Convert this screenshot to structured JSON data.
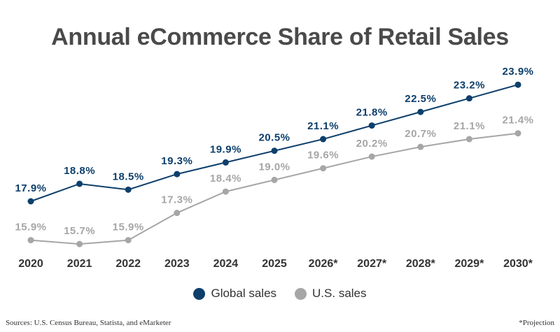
{
  "chart_data": {
    "type": "line",
    "title": "Annual eCommerce Share of Retail Sales",
    "categories": [
      "2020",
      "2021",
      "2022",
      "2023",
      "2024",
      "2025",
      "2026*",
      "2027*",
      "2028*",
      "2029*",
      "2030*"
    ],
    "series": [
      {
        "name": "Global sales",
        "color": "#0d3f6b",
        "values": [
          17.9,
          18.8,
          18.5,
          19.3,
          19.9,
          20.5,
          21.1,
          21.8,
          22.5,
          23.2,
          23.9
        ],
        "labels": [
          "17.9%",
          "18.8%",
          "18.5%",
          "19.3%",
          "19.9%",
          "20.5%",
          "21.1%",
          "21.8%",
          "22.5%",
          "23.2%",
          "23.9%"
        ]
      },
      {
        "name": "U.S. sales",
        "color": "#a6a6a6",
        "values": [
          15.9,
          15.7,
          15.9,
          17.3,
          18.4,
          19.0,
          19.6,
          20.2,
          20.7,
          21.1,
          21.4
        ],
        "labels": [
          "15.9%",
          "15.7%",
          "15.9%",
          "17.3%",
          "18.4%",
          "19.0%",
          "19.6%",
          "20.2%",
          "20.7%",
          "21.1%",
          "21.4%"
        ]
      }
    ],
    "grid": false,
    "legend": "bottom-center"
  },
  "footer": {
    "source": "Sources: U.S. Census Bureau, Statista, and eMarketer",
    "note": "*Projection"
  }
}
